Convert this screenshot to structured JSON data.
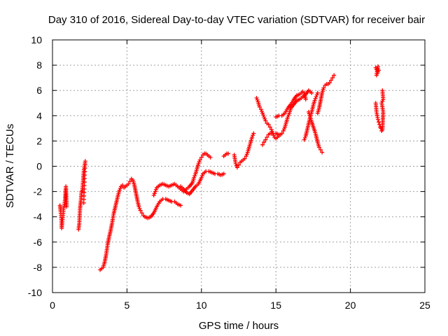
{
  "chart_data": {
    "type": "scatter",
    "title": "Day 310 of 2016, Sidereal Day-to-day VTEC variation (SDTVAR) for receiver bair",
    "xlabel": "GPS time / hours",
    "ylabel": "SDTVAR / TECUs",
    "xlim": [
      0,
      25
    ],
    "ylim": [
      -10,
      10
    ],
    "xticks": [
      "0",
      "5",
      "10",
      "15",
      "20",
      "25"
    ],
    "yticks": [
      "-10",
      "-8",
      "-6",
      "-4",
      "-2",
      "0",
      "2",
      "4",
      "6",
      "8",
      "10"
    ],
    "grid": true,
    "marker": "+",
    "color": "#ff0000",
    "series": [
      {
        "name": "",
        "segments": [
          [
            [
              0.5,
              -3.1
            ],
            [
              0.55,
              -3.6
            ],
            [
              0.6,
              -4.2
            ],
            [
              0.62,
              -4.9
            ],
            [
              0.65,
              -4.5
            ],
            [
              0.7,
              -3.9
            ],
            [
              0.75,
              -3.3
            ],
            [
              0.8,
              -3.0
            ],
            [
              0.85,
              -2.6
            ],
            [
              0.9,
              -1.6
            ],
            [
              0.95,
              -3.2
            ]
          ],
          [
            [
              1.75,
              -5.0
            ],
            [
              1.8,
              -4.5
            ],
            [
              1.85,
              -3.3
            ],
            [
              1.9,
              -2.8
            ],
            [
              1.95,
              -2.0
            ],
            [
              2.0,
              -1.9
            ],
            [
              2.05,
              -1.2
            ],
            [
              2.1,
              -0.4
            ],
            [
              2.15,
              0.0
            ],
            [
              2.2,
              0.4
            ],
            [
              2.1,
              -2.9
            ]
          ],
          [
            [
              3.2,
              -8.2
            ],
            [
              3.4,
              -8.0
            ],
            [
              3.5,
              -7.6
            ],
            [
              3.6,
              -7.0
            ],
            [
              3.7,
              -6.2
            ],
            [
              3.8,
              -5.6
            ],
            [
              3.9,
              -5.1
            ],
            [
              4.0,
              -4.5
            ],
            [
              4.1,
              -3.8
            ],
            [
              4.2,
              -3.3
            ],
            [
              4.3,
              -2.8
            ],
            [
              4.4,
              -2.3
            ],
            [
              4.5,
              -1.9
            ],
            [
              4.6,
              -1.6
            ],
            [
              4.7,
              -1.5
            ],
            [
              4.8,
              -1.7
            ],
            [
              4.9,
              -1.6
            ],
            [
              5.0,
              -1.5
            ],
            [
              5.1,
              -1.4
            ],
            [
              5.2,
              -1.2
            ],
            [
              5.3,
              -1.0
            ],
            [
              5.4,
              -1.1
            ],
            [
              5.5,
              -1.5
            ],
            [
              5.6,
              -2.1
            ],
            [
              5.7,
              -2.7
            ],
            [
              5.8,
              -3.2
            ],
            [
              5.9,
              -3.5
            ],
            [
              6.0,
              -3.7
            ],
            [
              6.1,
              -3.9
            ],
            [
              6.2,
              -4.0
            ],
            [
              6.4,
              -4.1
            ],
            [
              6.6,
              -4.0
            ],
            [
              6.8,
              -3.7
            ],
            [
              7.0,
              -3.2
            ],
            [
              7.2,
              -2.8
            ],
            [
              7.4,
              -2.6
            ],
            [
              7.6,
              -2.6
            ],
            [
              7.8,
              -2.7
            ],
            [
              8.0,
              -2.8
            ],
            [
              8.2,
              -2.8
            ],
            [
              8.4,
              -3.0
            ],
            [
              8.6,
              -3.1
            ]
          ],
          [
            [
              6.8,
              -2.3
            ],
            [
              6.9,
              -2.0
            ],
            [
              7.0,
              -1.7
            ],
            [
              7.2,
              -1.5
            ],
            [
              7.4,
              -1.4
            ],
            [
              7.6,
              -1.5
            ],
            [
              7.8,
              -1.6
            ],
            [
              8.0,
              -1.5
            ],
            [
              8.2,
              -1.4
            ],
            [
              8.4,
              -1.6
            ],
            [
              8.6,
              -1.8
            ],
            [
              8.8,
              -2.0
            ],
            [
              9.0,
              -1.8
            ],
            [
              9.2,
              -1.6
            ],
            [
              9.4,
              -1.3
            ],
            [
              9.5,
              -0.9
            ],
            [
              9.6,
              -0.6
            ],
            [
              9.7,
              -0.2
            ],
            [
              9.8,
              0.2
            ],
            [
              9.9,
              0.5
            ],
            [
              10.0,
              0.7
            ],
            [
              10.1,
              0.9
            ],
            [
              10.2,
              1.0
            ],
            [
              10.3,
              1.0
            ],
            [
              10.4,
              0.9
            ],
            [
              10.5,
              0.8
            ],
            [
              10.6,
              0.7
            ]
          ],
          [
            [
              8.6,
              -1.6
            ],
            [
              8.8,
              -1.8
            ],
            [
              9.0,
              -2.1
            ],
            [
              9.2,
              -2.2
            ],
            [
              9.4,
              -1.9
            ],
            [
              9.6,
              -1.6
            ],
            [
              9.8,
              -1.4
            ],
            [
              10.0,
              -0.9
            ],
            [
              10.1,
              -0.6
            ],
            [
              10.2,
              -0.5
            ],
            [
              10.3,
              -0.4
            ],
            [
              10.5,
              -0.4
            ],
            [
              10.7,
              -0.5
            ],
            [
              10.9,
              -0.6
            ],
            [
              11.1,
              -0.6
            ],
            [
              11.3,
              -0.7
            ],
            [
              11.5,
              -0.6
            ]
          ],
          [
            [
              11.5,
              0.8
            ],
            [
              11.6,
              0.9
            ],
            [
              11.7,
              1.0
            ],
            [
              11.8,
              1.0
            ]
          ],
          [
            [
              12.2,
              0.9
            ],
            [
              12.3,
              0.2
            ],
            [
              12.4,
              -0.1
            ],
            [
              12.5,
              0.1
            ],
            [
              12.6,
              0.3
            ],
            [
              12.7,
              0.4
            ],
            [
              12.8,
              0.5
            ],
            [
              12.9,
              0.6
            ],
            [
              13.0,
              0.8
            ],
            [
              13.1,
              1.1
            ],
            [
              13.2,
              1.5
            ],
            [
              13.3,
              1.9
            ],
            [
              13.4,
              2.3
            ],
            [
              13.5,
              2.6
            ]
          ],
          [
            [
              13.7,
              5.4
            ],
            [
              13.8,
              5.1
            ],
            [
              13.9,
              4.7
            ],
            [
              14.0,
              4.5
            ],
            [
              14.1,
              4.2
            ],
            [
              14.2,
              3.9
            ],
            [
              14.3,
              3.6
            ],
            [
              14.4,
              3.4
            ],
            [
              14.5,
              3.3
            ],
            [
              14.6,
              3.1
            ],
            [
              14.7,
              2.9
            ],
            [
              14.8,
              2.6
            ],
            [
              14.9,
              2.3
            ],
            [
              15.0,
              2.2
            ],
            [
              15.1,
              2.3
            ],
            [
              15.2,
              2.4
            ],
            [
              15.3,
              2.5
            ],
            [
              15.4,
              2.6
            ],
            [
              15.5,
              2.8
            ],
            [
              15.6,
              3.1
            ],
            [
              15.7,
              3.5
            ],
            [
              15.8,
              3.9
            ],
            [
              15.9,
              4.2
            ],
            [
              16.0,
              4.6
            ],
            [
              16.2,
              4.9
            ],
            [
              16.4,
              5.2
            ],
            [
              16.6,
              5.3
            ],
            [
              16.8,
              5.5
            ],
            [
              17.0,
              5.7
            ],
            [
              17.2,
              6.0
            ],
            [
              17.3,
              5.9
            ],
            [
              17.4,
              5.8
            ]
          ],
          [
            [
              14.1,
              1.7
            ],
            [
              14.2,
              1.9
            ],
            [
              14.3,
              2.1
            ],
            [
              14.4,
              2.3
            ],
            [
              14.5,
              2.5
            ],
            [
              14.6,
              2.6
            ],
            [
              14.7,
              2.6
            ],
            [
              14.8,
              2.6
            ],
            [
              15.0,
              2.6
            ],
            [
              15.2,
              2.5
            ]
          ],
          [
            [
              15.0,
              3.9
            ],
            [
              15.2,
              4.0
            ],
            [
              15.4,
              4.0
            ],
            [
              15.6,
              4.2
            ],
            [
              15.8,
              4.6
            ],
            [
              16.0,
              4.9
            ],
            [
              16.2,
              5.3
            ],
            [
              16.4,
              5.6
            ],
            [
              16.6,
              5.7
            ],
            [
              16.8,
              5.9
            ],
            [
              16.9,
              5.8
            ],
            [
              17.0,
              5.3
            ]
          ],
          [
            [
              16.9,
              2.1
            ],
            [
              17.0,
              2.4
            ],
            [
              17.1,
              2.9
            ],
            [
              17.2,
              3.4
            ],
            [
              17.3,
              3.9
            ],
            [
              17.4,
              4.3
            ],
            [
              17.5,
              4.8
            ],
            [
              17.6,
              5.2
            ],
            [
              17.7,
              5.5
            ],
            [
              17.8,
              5.8
            ]
          ],
          [
            [
              17.2,
              4.3
            ],
            [
              17.4,
              3.5
            ],
            [
              17.6,
              2.8
            ],
            [
              17.7,
              2.4
            ],
            [
              17.8,
              1.9
            ],
            [
              17.9,
              1.5
            ],
            [
              18.0,
              1.3
            ],
            [
              18.1,
              1.1
            ]
          ],
          [
            [
              17.8,
              4.2
            ],
            [
              17.9,
              4.6
            ],
            [
              18.0,
              5.2
            ],
            [
              18.1,
              5.8
            ],
            [
              18.2,
              6.2
            ],
            [
              18.3,
              6.4
            ],
            [
              18.4,
              6.5
            ],
            [
              18.5,
              6.5
            ],
            [
              18.6,
              6.6
            ],
            [
              18.7,
              6.8
            ],
            [
              18.8,
              7.0
            ],
            [
              18.9,
              7.2
            ]
          ],
          [
            [
              21.7,
              7.8
            ],
            [
              21.8,
              7.5
            ],
            [
              21.85,
              7.9
            ],
            [
              21.75,
              7.2
            ],
            [
              21.9,
              7.6
            ]
          ],
          [
            [
              21.7,
              5.0
            ],
            [
              21.75,
              4.3
            ],
            [
              21.8,
              4.0
            ],
            [
              21.85,
              3.7
            ],
            [
              21.9,
              3.5
            ],
            [
              21.95,
              3.3
            ],
            [
              22.0,
              3.1
            ],
            [
              22.05,
              3.0
            ],
            [
              22.1,
              2.8
            ],
            [
              22.15,
              2.9
            ],
            [
              22.2,
              4.3
            ],
            [
              22.1,
              5.0
            ],
            [
              22.2,
              5.3
            ],
            [
              22.15,
              6.0
            ]
          ]
        ]
      }
    ]
  }
}
